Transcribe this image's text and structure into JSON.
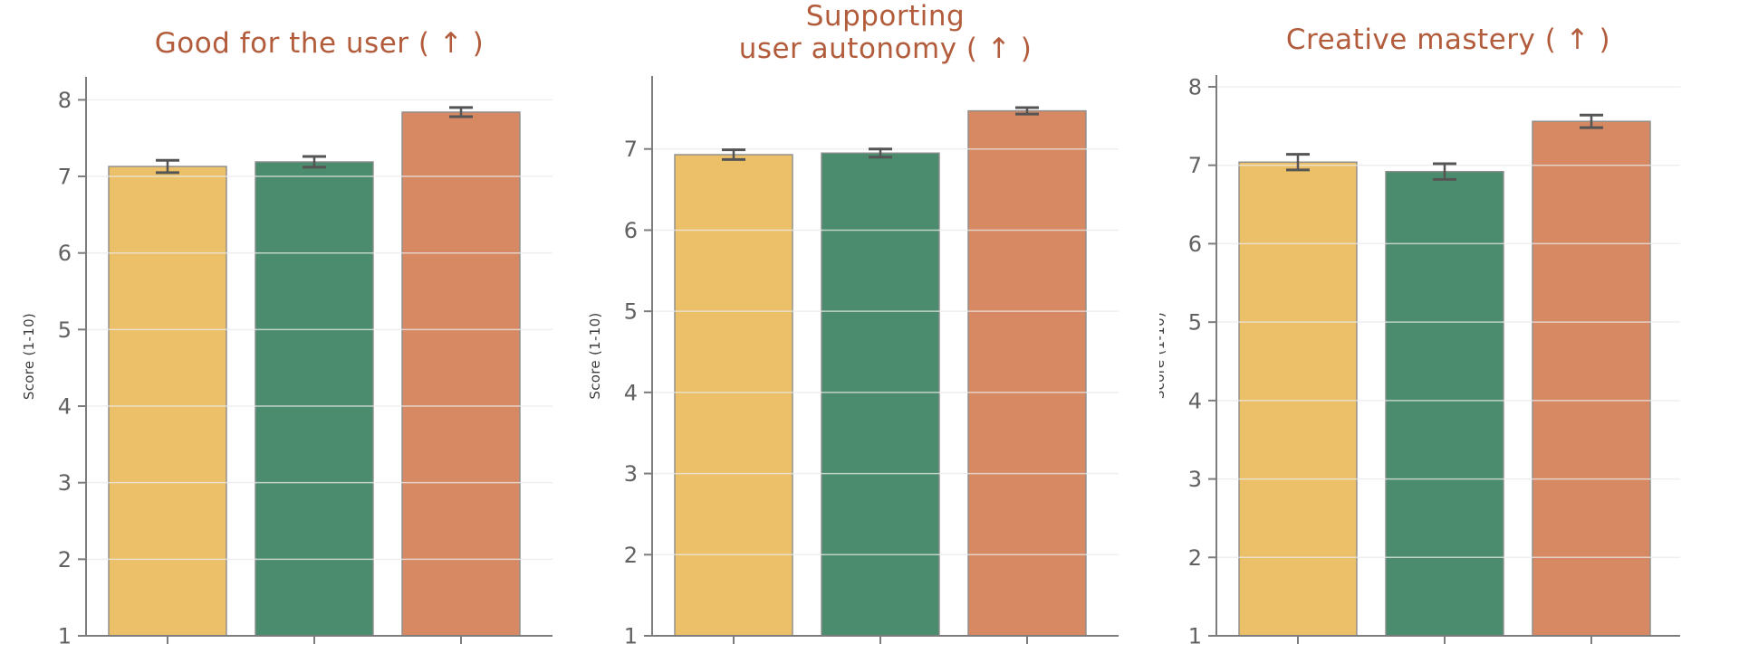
{
  "figure": {
    "background": "#ffffff",
    "description": "Three bar charts comparing three conditions on 1-10 rubric scores with error bars"
  },
  "palette": {
    "bar_colors": [
      "#ecc068",
      "#4a8c6d",
      "#d78963"
    ],
    "bar_edge": "#8c8c8c",
    "title_color": "#b25c3c",
    "tick_label_color": "#616161",
    "axis_color": "#7d7d7d",
    "grid_color": "#e9e9e9",
    "error_color": "#555555",
    "ylabel_color": "#3c3c3c"
  },
  "chart_data": [
    {
      "type": "bar",
      "title": "Good for the user  ( ↑ )",
      "ylabel": "Score (1-10)",
      "categories": [
        "",
        "",
        ""
      ],
      "values": [
        7.13,
        7.19,
        7.84
      ],
      "errors": [
        0.08,
        0.07,
        0.06
      ],
      "bar_colors": [
        "#ecc068",
        "#4a8c6d",
        "#d78963"
      ],
      "ylim": [
        1,
        8.3
      ],
      "yticks": [
        1,
        2,
        3,
        4,
        5,
        6,
        7,
        8
      ],
      "grid": true,
      "legend": "none"
    },
    {
      "type": "bar",
      "title": "Supporting\nuser autonomy  ( ↑ )",
      "ylabel": "Score (1-10)",
      "categories": [
        "",
        "",
        ""
      ],
      "values": [
        6.93,
        6.95,
        7.47
      ],
      "errors": [
        0.06,
        0.05,
        0.04
      ],
      "bar_colors": [
        "#ecc068",
        "#4a8c6d",
        "#d78963"
      ],
      "ylim": [
        1,
        7.9
      ],
      "yticks": [
        1,
        2,
        3,
        4,
        5,
        6,
        7
      ],
      "grid": true,
      "legend": "none"
    },
    {
      "type": "bar",
      "title": "Creative mastery  ( ↑ )",
      "ylabel": "Score (1-10)",
      "categories": [
        "",
        "",
        ""
      ],
      "values": [
        7.04,
        6.92,
        7.56
      ],
      "errors": [
        0.1,
        0.1,
        0.08
      ],
      "bar_colors": [
        "#ecc068",
        "#4a8c6d",
        "#d78963"
      ],
      "ylim": [
        1,
        8.15
      ],
      "yticks": [
        1,
        2,
        3,
        4,
        5,
        6,
        7,
        8
      ],
      "grid": true,
      "legend": "none"
    }
  ]
}
